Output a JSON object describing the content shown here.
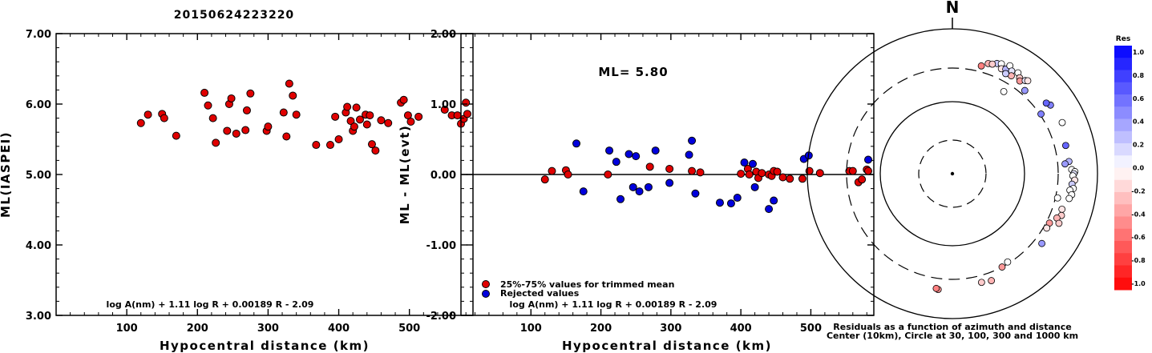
{
  "title": "20150624223220",
  "chart_data": [
    {
      "type": "scatter",
      "xlabel": "Hypocentral distance (km)",
      "ylabel": "ML(IASPEI)",
      "xlim": [
        0,
        590
      ],
      "ylim": [
        3.0,
        7.0
      ],
      "x_ticks": [
        100,
        200,
        300,
        400,
        500
      ],
      "y_ticks": [
        "3.00",
        "4.00",
        "5.00",
        "6.00",
        "7.00"
      ],
      "y_tick_values": [
        3,
        4,
        5,
        6,
        7
      ],
      "formula": "log A(nm) + 1.11 log R + 0.00189 R - 2.09",
      "series": [
        {
          "color": "#e00000",
          "x": [
            120,
            130,
            150,
            153,
            170,
            210,
            215,
            222,
            226,
            242,
            245,
            248,
            255,
            268,
            270,
            275,
            298,
            300,
            322,
            326,
            330,
            335,
            340,
            368,
            388,
            395,
            400,
            410,
            412,
            417,
            420,
            422,
            425,
            430,
            438,
            440,
            444,
            447,
            452,
            460,
            470,
            488,
            492,
            498,
            502,
            513,
            550,
            560,
            568,
            573,
            577,
            580,
            582
          ],
          "y": [
            5.73,
            5.85,
            5.86,
            5.8,
            5.55,
            6.16,
            5.98,
            5.8,
            5.45,
            5.62,
            6.0,
            6.08,
            5.58,
            5.63,
            5.91,
            6.15,
            5.62,
            5.68,
            5.88,
            5.54,
            6.29,
            6.12,
            5.85,
            5.42,
            5.42,
            5.82,
            5.5,
            5.88,
            5.96,
            5.76,
            5.62,
            5.68,
            5.95,
            5.78,
            5.85,
            5.71,
            5.84,
            5.43,
            5.34,
            5.77,
            5.73,
            6.02,
            6.06,
            5.84,
            5.75,
            5.82,
            5.92,
            5.84,
            5.84,
            5.72,
            5.79,
            6.02,
            5.86
          ]
        }
      ]
    },
    {
      "type": "scatter",
      "xlabel": "Hypocentral distance (km)",
      "ylabel": "ML - ML(evt)",
      "xlim": [
        0,
        590
      ],
      "ylim": [
        -2.0,
        2.0
      ],
      "x_ticks": [
        100,
        200,
        300,
        400,
        500
      ],
      "y_ticks": [
        "-2.00",
        "-1.00",
        "0.00",
        "1.00",
        "2.00"
      ],
      "y_tick_values": [
        -2,
        -1,
        0,
        1,
        2
      ],
      "zero_line": true,
      "annotation": "ML= 5.80",
      "formula": "log A(nm) + 1.11 log R + 0.00189 R - 2.09",
      "legend": [
        {
          "label": "25%-75% values for trimmed mean",
          "color": "#e00000"
        },
        {
          "label": "Rejected values",
          "color": "#0000dd"
        }
      ],
      "series": [
        {
          "name": "25%-75% values for trimmed mean",
          "color": "#e00000",
          "x": [
            120,
            130,
            150,
            153,
            210,
            270,
            298,
            330,
            342,
            400,
            410,
            412,
            422,
            425,
            430,
            440,
            444,
            447,
            452,
            460,
            470,
            488,
            498,
            513,
            555,
            560,
            568,
            573,
            580,
            582
          ],
          "y": [
            -0.07,
            0.05,
            0.06,
            0.0,
            0.0,
            0.11,
            0.08,
            0.05,
            0.03,
            0.01,
            0.08,
            0.0,
            0.04,
            -0.05,
            0.02,
            0.0,
            -0.02,
            0.05,
            0.04,
            -0.04,
            -0.06,
            -0.06,
            0.05,
            0.02,
            0.05,
            0.05,
            -0.11,
            -0.07,
            0.07,
            0.05
          ]
        },
        {
          "name": "Rejected values",
          "color": "#0000dd",
          "x": [
            165,
            175,
            212,
            222,
            228,
            240,
            246,
            250,
            255,
            268,
            278,
            298,
            326,
            330,
            335,
            370,
            386,
            395,
            405,
            417,
            420,
            440,
            447,
            490,
            497,
            582
          ],
          "y": [
            0.44,
            -0.24,
            0.34,
            0.18,
            -0.35,
            0.29,
            -0.18,
            0.26,
            -0.24,
            -0.18,
            0.34,
            -0.12,
            0.28,
            0.48,
            -0.27,
            -0.4,
            -0.41,
            -0.33,
            0.17,
            0.15,
            -0.18,
            -0.49,
            -0.37,
            0.22,
            0.27,
            0.21
          ]
        }
      ]
    },
    {
      "type": "scatter",
      "projection": "polar",
      "north_label": "N",
      "caption_lines": [
        "Residuals as a function of azimuth and distance",
        "Center (10km), Circle at 30, 100, 300 and 1000 km"
      ],
      "circles_km": [
        30,
        100,
        300,
        1000
      ],
      "colorbar": {
        "title": "Res",
        "labels": [
          "1.0",
          "0.8",
          "0.6",
          "0.4",
          "0.2",
          "0.0",
          "-0.2",
          "-0.4",
          "-0.6",
          "-0.8",
          "-1.0"
        ],
        "max_color": "#0000ff",
        "min_color": "#ff0000"
      },
      "stations": [
        {
          "azimuth_deg": 22,
          "distance_km": 450,
          "residual": 0.2
        },
        {
          "azimuth_deg": 24,
          "distance_km": 470,
          "residual": 0.0
        },
        {
          "azimuth_deg": 25,
          "distance_km": 410,
          "residual": -0.1
        },
        {
          "azimuth_deg": 27,
          "distance_km": 430,
          "residual": 0.3
        },
        {
          "azimuth_deg": 28,
          "distance_km": 500,
          "residual": 0.0
        },
        {
          "azimuth_deg": 30,
          "distance_km": 445,
          "residual": 0.1
        },
        {
          "azimuth_deg": 31,
          "distance_km": 390,
          "residual": -0.3
        },
        {
          "azimuth_deg": 33,
          "distance_km": 470,
          "residual": 0.0
        },
        {
          "azimuth_deg": 35,
          "distance_km": 425,
          "residual": -0.2
        },
        {
          "azimuth_deg": 36,
          "distance_km": 395,
          "residual": -0.4
        },
        {
          "azimuth_deg": 38,
          "distance_km": 440,
          "residual": 0.1
        },
        {
          "azimuth_deg": 39,
          "distance_km": 460,
          "residual": -0.1
        },
        {
          "azimuth_deg": 41,
          "distance_km": 345,
          "residual": 0.4
        },
        {
          "azimuth_deg": 28,
          "distance_km": 380,
          "residual": 0.2
        },
        {
          "azimuth_deg": 18,
          "distance_km": 410,
          "residual": -0.3
        },
        {
          "azimuth_deg": 20,
          "distance_km": 420,
          "residual": -0.2
        },
        {
          "azimuth_deg": 15,
          "distance_km": 360,
          "residual": -0.5
        },
        {
          "azimuth_deg": 32,
          "distance_km": 225,
          "residual": 0.0
        },
        {
          "azimuth_deg": 55,
          "distance_km": 460,
          "residual": 0.5
        },
        {
          "azimuth_deg": 53,
          "distance_km": 430,
          "residual": 0.6
        },
        {
          "azimuth_deg": 56,
          "distance_km": 310,
          "residual": 0.5
        },
        {
          "azimuth_deg": 65,
          "distance_km": 480,
          "residual": 0.0
        },
        {
          "azimuth_deg": 76,
          "distance_km": 420,
          "residual": 0.6
        },
        {
          "azimuth_deg": 84,
          "distance_km": 425,
          "residual": 0.3
        },
        {
          "azimuth_deg": 85,
          "distance_km": 375,
          "residual": 0.4
        },
        {
          "azimuth_deg": 88,
          "distance_km": 455,
          "residual": 0.0
        },
        {
          "azimuth_deg": 89,
          "distance_km": 500,
          "residual": 0.0
        },
        {
          "azimuth_deg": 90,
          "distance_km": 485,
          "residual": 0.1
        },
        {
          "azimuth_deg": 91,
          "distance_km": 470,
          "residual": 0.0
        },
        {
          "azimuth_deg": 93,
          "distance_km": 500,
          "residual": -0.1
        },
        {
          "azimuth_deg": 95,
          "distance_km": 465,
          "residual": 0.2
        },
        {
          "azimuth_deg": 97,
          "distance_km": 490,
          "residual": 0.0
        },
        {
          "azimuth_deg": 98,
          "distance_km": 445,
          "residual": 0.0
        },
        {
          "azimuth_deg": 100,
          "distance_km": 480,
          "residual": 0.0
        },
        {
          "azimuth_deg": 102,
          "distance_km": 455,
          "residual": 0.0
        },
        {
          "azimuth_deg": 103,
          "distance_km": 320,
          "residual": 0.0
        },
        {
          "azimuth_deg": 108,
          "distance_km": 400,
          "residual": -0.1
        },
        {
          "azimuth_deg": 111,
          "distance_km": 420,
          "residual": -0.2
        },
        {
          "azimuth_deg": 113,
          "distance_km": 380,
          "residual": -0.3
        },
        {
          "azimuth_deg": 115,
          "distance_km": 430,
          "residual": -0.2
        },
        {
          "azimuth_deg": 117,
          "distance_km": 330,
          "residual": -0.4
        },
        {
          "azimuth_deg": 120,
          "distance_km": 330,
          "residual": -0.1
        },
        {
          "azimuth_deg": 128,
          "distance_km": 380,
          "residual": 0.4
        },
        {
          "azimuth_deg": 148,
          "distance_km": 285,
          "residual": 0.0
        },
        {
          "azimuth_deg": 152,
          "distance_km": 300,
          "residual": -0.4
        },
        {
          "azimuth_deg": 160,
          "distance_km": 385,
          "residual": -0.3
        },
        {
          "azimuth_deg": 165,
          "distance_km": 370,
          "residual": -0.2
        },
        {
          "azimuth_deg": 187,
          "distance_km": 420,
          "residual": -0.4
        },
        {
          "azimuth_deg": 188,
          "distance_km": 410,
          "residual": -0.5
        }
      ]
    }
  ]
}
